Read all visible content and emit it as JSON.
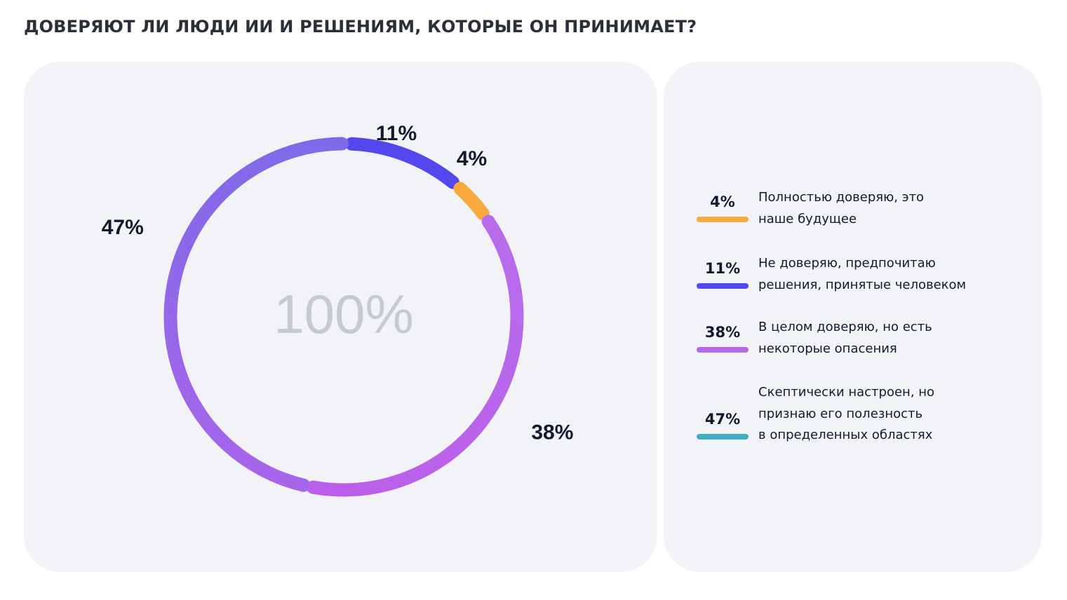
{
  "title": "ДОВЕРЯЮТ ЛИ ЛЮДИ ИИ И РЕШЕНИЯМ, КОТОРЫЕ ОН ПРИНИМАЕТ?",
  "chart_data": {
    "type": "pie",
    "variant": "donut",
    "center_label": "100%",
    "categories": [
      "Полностью доверяю, это наше будущее",
      "Не доверяю, предпочитаю решения, принятые человеком",
      "В целом доверяю, но есть некоторые опасения",
      "Скептически настроен, но признаю его полезность в определенных областях"
    ],
    "values": [
      4,
      11,
      38,
      47
    ],
    "unit": "%",
    "labels": [
      "4%",
      "11%",
      "38%",
      "47%"
    ],
    "colors": [
      "#f7ab3e",
      "#5248ee",
      "#b667ea",
      "#42aec5"
    ],
    "ring_draw_order": [
      "11%",
      "4%",
      "38%",
      "47%"
    ],
    "ring_colors": {
      "11%": [
        "#5248ee",
        "#5248ee"
      ],
      "4%": [
        "#f7ab3e",
        "#f7ab3e"
      ],
      "38%": [
        "#b76cec",
        "#bb5ee9"
      ],
      "47%": [
        "#a765ea",
        "#7e6ae8"
      ]
    },
    "legend_position": "right"
  },
  "legend": {
    "items": [
      {
        "pct": "4%",
        "color": "#f7ab3e",
        "lines": [
          "Полностью доверяю, это",
          "наше будущее"
        ]
      },
      {
        "pct": "11%",
        "color": "#5248ee",
        "lines": [
          "Не доверяю, предпочитаю",
          "решения, принятые человеком"
        ]
      },
      {
        "pct": "38%",
        "color": "#b667ea",
        "lines": [
          "В целом доверяю, но есть",
          "некоторые опасения"
        ]
      },
      {
        "pct": "47%",
        "color": "#42aec5",
        "lines": [
          "Скептически настроен, но",
          "признаю его полезность",
          "в определенных областях"
        ]
      }
    ]
  }
}
